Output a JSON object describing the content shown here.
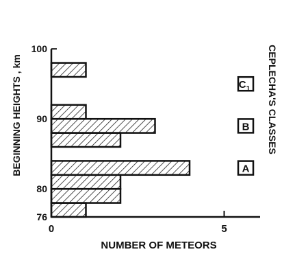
{
  "chart_data": {
    "type": "bar",
    "orientation": "horizontal",
    "xlabel": "NUMBER OF METEORS",
    "ylabel": "BEGINNING HEIGHTS , km",
    "xlim": [
      0,
      6
    ],
    "ylim": [
      76,
      100
    ],
    "x_ticks": [
      "0",
      "5"
    ],
    "y_ticks": [
      "76",
      "80",
      "90",
      "100"
    ],
    "bins": [
      {
        "from": 76,
        "to": 78,
        "count": 1
      },
      {
        "from": 78,
        "to": 80,
        "count": 2
      },
      {
        "from": 80,
        "to": 82,
        "count": 2
      },
      {
        "from": 82,
        "to": 84,
        "count": 4
      },
      {
        "from": 86,
        "to": 88,
        "count": 2
      },
      {
        "from": 88,
        "to": 90,
        "count": 3
      },
      {
        "from": 90,
        "to": 92,
        "count": 1
      },
      {
        "from": 96,
        "to": 98,
        "count": 1
      }
    ],
    "side_label": "CEPLECHA'S CLASSES",
    "classes": [
      {
        "label": "A",
        "height": 83
      },
      {
        "label": "B",
        "height": 89
      },
      {
        "label": "C1",
        "height": 95
      }
    ]
  }
}
